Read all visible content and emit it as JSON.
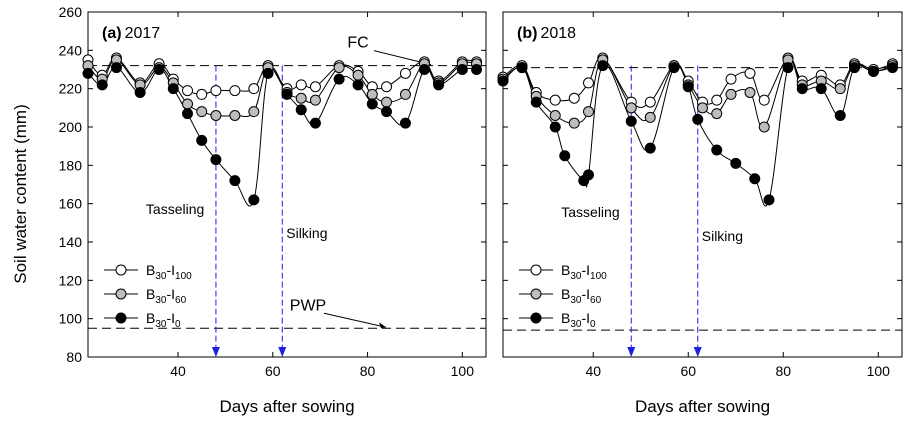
{
  "colors": {
    "open_marker": "#ffffff",
    "gray_marker": "#bdbdbd",
    "black_marker": "#000000",
    "stage_arrow": "#1f1fe0"
  },
  "chart_data": [
    {
      "type": "scatter",
      "panel_letter": "(a)",
      "year": "2017",
      "xlabel": "Days after sowing",
      "ylabel": "Soil water content (mm)",
      "xlim": [
        21,
        105
      ],
      "ylim": [
        80,
        260
      ],
      "xticks": [
        40,
        60,
        80,
        100
      ],
      "yticks": [
        80,
        100,
        120,
        140,
        160,
        180,
        200,
        220,
        240,
        260
      ],
      "reference_lines": [
        {
          "label": "FC",
          "y": 232
        },
        {
          "label": "PWP",
          "y": 95
        }
      ],
      "stage_markers": [
        {
          "label": "Tasseling",
          "x": 48
        },
        {
          "label": "Silking",
          "x": 62
        }
      ],
      "legend": "lower-left",
      "series": [
        {
          "name": "B30-I100",
          "sub_base": "30",
          "sub_level": "100",
          "marker": "open",
          "x": [
            21,
            24,
            27,
            32,
            36,
            39,
            42,
            45,
            48,
            52,
            56,
            59,
            63,
            66,
            69,
            74,
            78,
            81,
            84,
            88,
            92,
            95,
            100,
            103
          ],
          "y": [
            235,
            227,
            236,
            223,
            233,
            225,
            219,
            217,
            219,
            219,
            220,
            232,
            220,
            222,
            221,
            232,
            229,
            221,
            221,
            228,
            234,
            224,
            234,
            234
          ]
        },
        {
          "name": "B30-I60",
          "sub_base": "30",
          "sub_level": "60",
          "marker": "gray",
          "x": [
            21,
            24,
            27,
            32,
            36,
            39,
            42,
            45,
            48,
            52,
            56,
            59,
            63,
            66,
            69,
            74,
            78,
            81,
            84,
            88,
            92,
            95,
            100,
            103
          ],
          "y": [
            232,
            225,
            235,
            222,
            231,
            223,
            212,
            208,
            206,
            206,
            208,
            231,
            218,
            215,
            214,
            231,
            227,
            217,
            213,
            217,
            233,
            223,
            233,
            233
          ]
        },
        {
          "name": "B30-I0",
          "sub_base": "30",
          "sub_level": "0",
          "marker": "black",
          "x": [
            21,
            24,
            27,
            32,
            36,
            39,
            42,
            45,
            48,
            52,
            56,
            59,
            63,
            66,
            69,
            74,
            78,
            81,
            84,
            88,
            92,
            95,
            100,
            103
          ],
          "y": [
            228,
            222,
            231,
            218,
            230,
            220,
            207,
            193,
            183,
            172,
            162,
            228,
            217,
            209,
            202,
            225,
            222,
            212,
            208,
            202,
            230,
            222,
            230,
            230
          ]
        }
      ]
    },
    {
      "type": "scatter",
      "panel_letter": "(b)",
      "year": "2018",
      "xlabel": "Days after sowing",
      "ylabel": "",
      "xlim": [
        21,
        105
      ],
      "ylim": [
        80,
        260
      ],
      "xticks": [
        40,
        60,
        80,
        100
      ],
      "yticks": [],
      "reference_lines": [
        {
          "label": "",
          "y": 231
        },
        {
          "label": "",
          "y": 94
        }
      ],
      "stage_markers": [
        {
          "label": "Tasseling",
          "x": 48
        },
        {
          "label": "Silking",
          "x": 62
        }
      ],
      "legend": "lower-left",
      "series": [
        {
          "name": "B30-I100",
          "sub_base": "30",
          "sub_level": "100",
          "marker": "open",
          "x": [
            21,
            25,
            28,
            32,
            36,
            39,
            42,
            48,
            52,
            57,
            60,
            63,
            66,
            69,
            73,
            76,
            81,
            84,
            88,
            92,
            95,
            99,
            103
          ],
          "y": [
            226,
            232,
            218,
            214,
            215,
            223,
            236,
            213,
            213,
            232,
            224,
            213,
            214,
            225,
            228,
            214,
            236,
            224,
            227,
            222,
            233,
            230,
            233
          ]
        },
        {
          "name": "B30-I60",
          "sub_base": "30",
          "sub_level": "60",
          "marker": "gray",
          "x": [
            21,
            25,
            28,
            32,
            36,
            39,
            42,
            48,
            52,
            57,
            60,
            63,
            66,
            69,
            73,
            76,
            81,
            84,
            88,
            92,
            95,
            99,
            103
          ],
          "y": [
            225,
            231,
            216,
            206,
            202,
            208,
            235,
            210,
            205,
            232,
            222,
            210,
            207,
            217,
            218,
            200,
            235,
            222,
            224,
            220,
            232,
            229,
            232
          ]
        },
        {
          "name": "B30-I0",
          "sub_base": "30",
          "sub_level": "0",
          "marker": "black",
          "x": [
            21,
            25,
            28,
            32,
            34,
            38,
            39,
            42,
            48,
            52,
            57,
            60,
            62,
            66,
            70,
            74,
            77,
            81,
            84,
            88,
            92,
            95,
            99,
            103
          ],
          "y": [
            224,
            231,
            213,
            200,
            185,
            172,
            175,
            232,
            203,
            189,
            231,
            221,
            204,
            188,
            181,
            173,
            162,
            231,
            220,
            220,
            206,
            231,
            229,
            231
          ]
        }
      ]
    }
  ]
}
